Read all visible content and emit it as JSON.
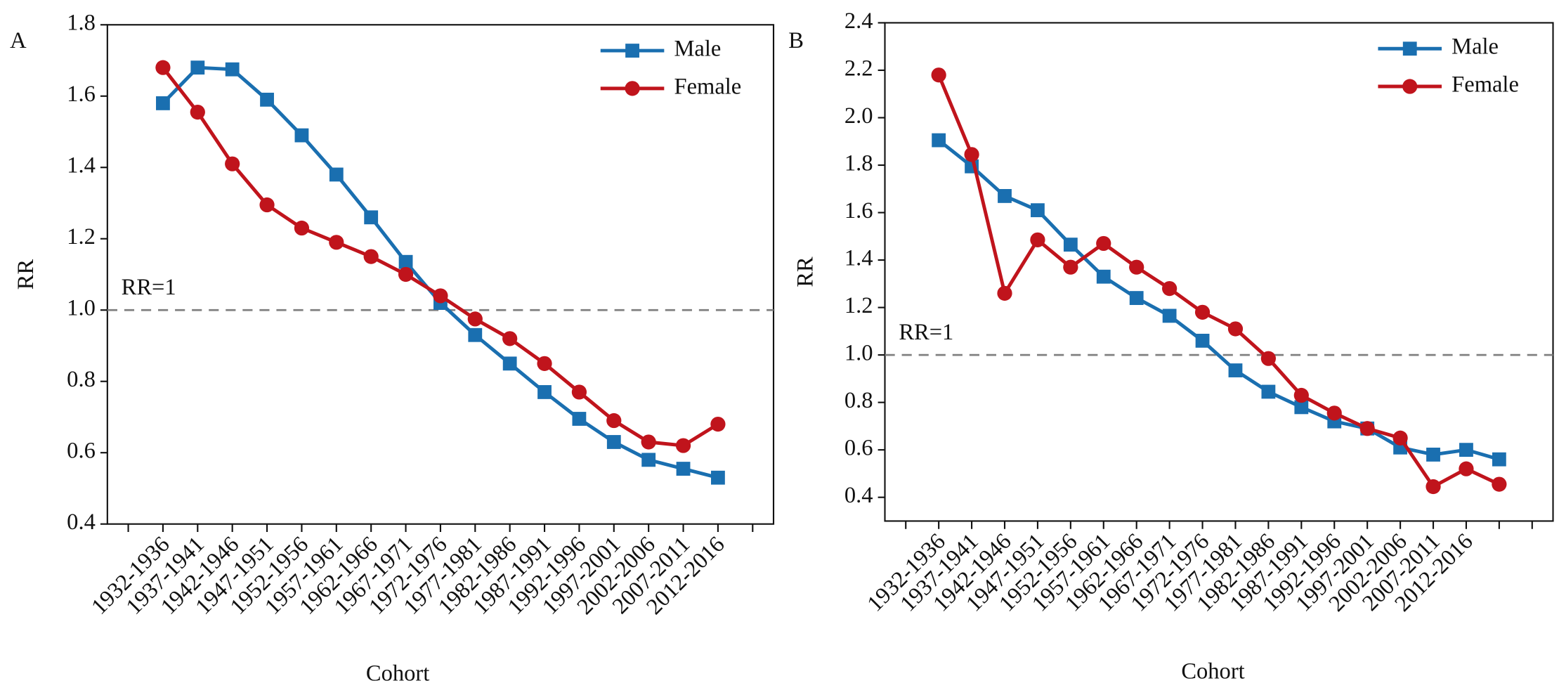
{
  "chart_data": [
    {
      "type": "line",
      "panel": "A",
      "ylabel": "RR",
      "xlabel": "Cohort",
      "categories": [
        "1932-1936",
        "1937-1941",
        "1942-1946",
        "1947-1951",
        "1952-1956",
        "1957-1961",
        "1962-1966",
        "1967-1971",
        "1972-1976",
        "1977-1981",
        "1982-1986",
        "1987-1991",
        "1992-1996",
        "1997-2001",
        "2002-2006",
        "2007-2011",
        "2012-2016"
      ],
      "series": [
        {
          "name": "Male",
          "color": "#1a6fb0",
          "marker": "square",
          "values": [
            1.58,
            1.68,
            1.675,
            1.59,
            1.49,
            1.38,
            1.26,
            1.135,
            1.02,
            0.93,
            0.85,
            0.77,
            0.695,
            0.63,
            0.58,
            0.555,
            0.53
          ]
        },
        {
          "name": "Female",
          "color": "#c0141c",
          "marker": "circle",
          "values": [
            1.68,
            1.555,
            1.41,
            1.295,
            1.23,
            1.19,
            1.15,
            1.1,
            1.04,
            0.975,
            0.92,
            0.85,
            0.77,
            0.69,
            0.63,
            0.62,
            0.68
          ]
        }
      ],
      "ylim": [
        0.4,
        1.8
      ],
      "yticks": [
        0.4,
        0.6,
        0.8,
        {
          "value": 1,
          "label": "1.0"
        },
        1.2,
        1.4,
        1.6,
        1.8
      ],
      "reference_line": {
        "value": 1,
        "label": "RR=1"
      },
      "legend": "upper right"
    },
    {
      "type": "line",
      "panel": "B",
      "ylabel": "RR",
      "xlabel": "Cohort",
      "categories": [
        "1932-1936",
        "1937-1941",
        "1942-1946",
        "1947-1951",
        "1952-1956",
        "1957-1961",
        "1962-1966",
        "1967-1971",
        "1972-1976",
        "1977-1981",
        "1982-1986",
        "1987-1991",
        "1992-1996",
        "1997-2001",
        "2002-2006",
        "2007-2011",
        "2012-2016",
        null
      ],
      "series": [
        {
          "name": "Male",
          "color": "#1a6fb0",
          "marker": "square",
          "values": [
            1.905,
            1.795,
            1.67,
            1.61,
            1.465,
            1.33,
            1.24,
            1.165,
            1.06,
            0.935,
            0.845,
            0.78,
            0.72,
            0.69,
            0.61,
            0.58,
            0.6,
            0.56
          ]
        },
        {
          "name": "Female",
          "color": "#c0141c",
          "marker": "circle",
          "values": [
            2.18,
            1.845,
            1.26,
            1.485,
            1.37,
            1.47,
            1.37,
            1.28,
            1.18,
            1.11,
            0.985,
            0.83,
            0.755,
            0.69,
            0.65,
            0.445,
            0.52,
            0.455
          ]
        }
      ],
      "ylim": [
        0.3,
        2.4
      ],
      "yticks": [
        0.4,
        0.6,
        0.8,
        {
          "value": 1,
          "label": "1.0"
        },
        1.2,
        1.4,
        1.6,
        1.8,
        {
          "value": 2,
          "label": "2.0"
        },
        2.2,
        2.4
      ],
      "reference_line": {
        "value": 1,
        "label": "RR=1"
      },
      "legend": "upper right"
    }
  ]
}
